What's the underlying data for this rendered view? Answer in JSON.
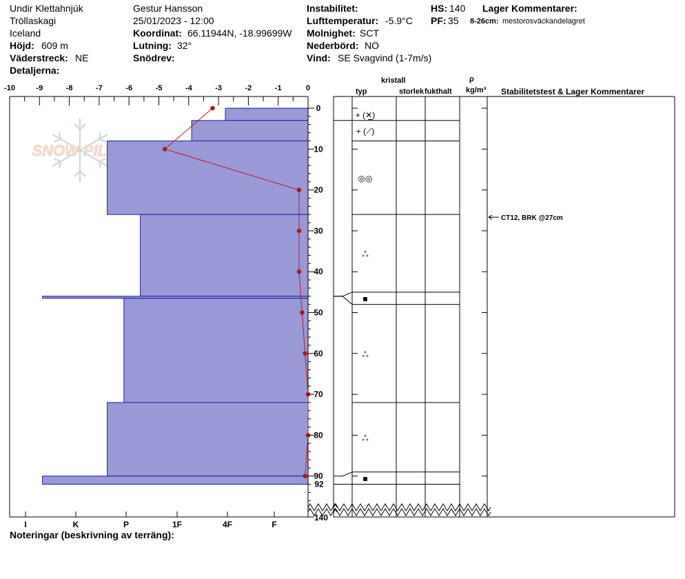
{
  "header": {
    "location": "Undir Klettahnjúk",
    "area": "Tröllaskagi",
    "country": "Iceland",
    "elevation_label": "Höjd:",
    "elevation_value": "609 m",
    "aspect_label": "Väderstreck:",
    "aspect_value": "NE",
    "details_label": "Detaljerna:",
    "observer": "Gestur Hansson",
    "datetime": "25/01/2023 - 12:00",
    "coord_label": "Koordinat:",
    "coord_value": "66.11944N, -18.99699W",
    "slope_label": "Lutning:",
    "slope_value": "32°",
    "drift_label": "Snödrev:",
    "instab_label": "Instabilitet:",
    "airtemp_label": "Lufttemperatur:",
    "airtemp_value": "-5.9°C",
    "sky_label": "Molnighet:",
    "sky_value": "SCT",
    "precip_label": "Nederbörd:",
    "precip_value": "NO",
    "wind_label": "Vind:",
    "wind_value": "SE Svagvind (1-7m/s)",
    "hs_label": "HS:",
    "hs_value": "140",
    "pf_label": "PF:",
    "pf_value": "35",
    "layer_comments_label": "Lager Kommentarer:",
    "layer_comment_range": "8-26cm:",
    "layer_comment_text": "mestorosväckandelagret",
    "notes_label": "Noteringar (beskrivning av terräng):"
  },
  "columns": {
    "crystal": "kristall",
    "type": "typ",
    "size": "storlek",
    "moisture": "fukthalt",
    "rho": "ρ",
    "rho_unit": "kg/m³",
    "stability": "Stabilitetstest & Lager Kommentarer"
  },
  "logo_text": "SNOW PILOT",
  "chart_data": {
    "type": "snow-profile",
    "temp_axis": {
      "range": [
        -10,
        0
      ],
      "ticks": [
        "-10",
        "-9",
        "-8",
        "-7",
        "-6",
        "-5",
        "-4",
        "-3",
        "-2",
        "-1",
        "0"
      ]
    },
    "depth_axis": {
      "range": [
        0,
        140
      ],
      "ticks": [
        0,
        10,
        20,
        30,
        40,
        50,
        60,
        70,
        80,
        90
      ],
      "extra_labels": [
        "92",
        "140"
      ]
    },
    "hardness_labels": [
      "I",
      "K",
      "P",
      "1F",
      "4F",
      "F"
    ],
    "hardness_layers": [
      {
        "top": 0,
        "bottom": 3,
        "hardness_scale": 2.77
      },
      {
        "top": 3,
        "bottom": 8,
        "hardness_scale": 3.9
      },
      {
        "top": 8,
        "bottom": 26,
        "hardness_scale": 6.73
      },
      {
        "top": 26,
        "bottom": 46,
        "hardness_scale": 5.62
      },
      {
        "top": 46,
        "bottom": 46.5,
        "hardness_scale": 8.9
      },
      {
        "top": 46.5,
        "bottom": 72,
        "hardness_scale": 6.17
      },
      {
        "top": 72,
        "bottom": 90,
        "hardness_scale": 6.73
      },
      {
        "top": 90,
        "bottom": 92,
        "hardness_scale": 8.9
      }
    ],
    "temperature": [
      {
        "depth": 0,
        "temp": -3.2
      },
      {
        "depth": 10,
        "temp": -4.8
      },
      {
        "depth": 20,
        "temp": -0.3
      },
      {
        "depth": 30,
        "temp": -0.3
      },
      {
        "depth": 40,
        "temp": -0.3
      },
      {
        "depth": 50,
        "temp": -0.2
      },
      {
        "depth": 60,
        "temp": -0.1
      },
      {
        "depth": 70,
        "temp": 0.0
      },
      {
        "depth": 80,
        "temp": 0.0
      },
      {
        "depth": 90,
        "temp": -0.1
      }
    ],
    "layers": [
      {
        "top": 0,
        "bottom": 3,
        "symbol": "+ (✕̲)"
      },
      {
        "top": 3,
        "bottom": 8,
        "symbol": "+ (⟋)"
      },
      {
        "top": 8,
        "bottom": 26,
        "symbol": "◎◎"
      },
      {
        "top": 26,
        "bottom": 45,
        "symbol": "ஃ"
      },
      {
        "top": 45,
        "bottom": 48,
        "symbol": "■"
      },
      {
        "top": 48,
        "bottom": 72,
        "symbol": "ஃ"
      },
      {
        "top": 72,
        "bottom": 89,
        "symbol": "ஃ"
      },
      {
        "top": 89,
        "bottom": 92,
        "symbol": "■"
      }
    ],
    "stability_tests": [
      {
        "depth": 27,
        "text": "CT12, BRK @27cm"
      }
    ]
  }
}
